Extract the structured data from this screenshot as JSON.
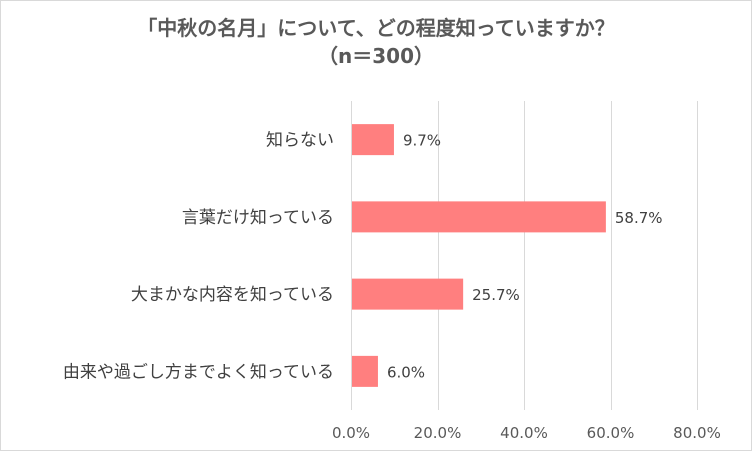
{
  "chart_data": {
    "type": "bar",
    "orientation": "horizontal",
    "title": "「中秋の名月」について、どの程度知っていますか？",
    "subtitle": "（n＝300）",
    "categories": [
      "知らない",
      "言葉だけ知っている",
      "大まかな内容を知っている",
      "由来や過ごし方までよく知っている"
    ],
    "values": [
      9.7,
      58.7,
      25.7,
      6.0
    ],
    "value_labels": [
      "9.7%",
      "58.7%",
      "25.7%",
      "6.0%"
    ],
    "xlim": [
      0,
      80
    ],
    "x_ticks": [
      0,
      20,
      40,
      60,
      80
    ],
    "x_tick_labels": [
      "0.0%",
      "20.0%",
      "40.0%",
      "60.0%",
      "80.0%"
    ],
    "grid": true,
    "legend": "none",
    "bar_color": "#ff7f7f",
    "grid_color": "#d9d9d9"
  }
}
